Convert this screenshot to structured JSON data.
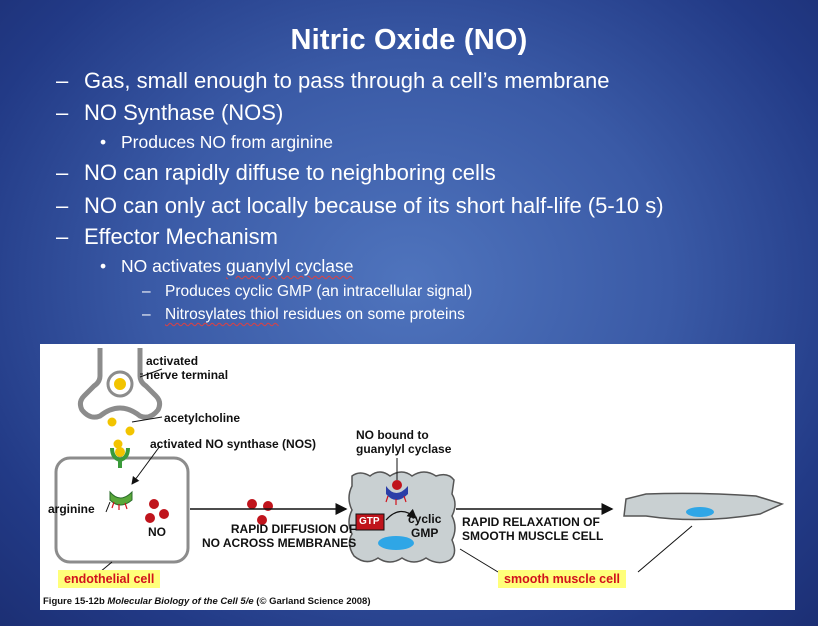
{
  "slide": {
    "title": "Nitric Oxide (NO)",
    "bullets": [
      {
        "marker": "–",
        "text": "Gas, small enough to pass through a cell’s membrane"
      },
      {
        "marker": "–",
        "text": "NO Synthase (NOS)"
      },
      {
        "marker": "•",
        "text": "Produces NO from arginine"
      },
      {
        "marker": "–",
        "text": "NO can rapidly diffuse to neighboring cells"
      },
      {
        "marker": "–",
        "text": "NO can only act locally because of its short half-life (5-10 s)"
      },
      {
        "marker": "–",
        "text": "Effector Mechanism"
      },
      {
        "marker": "•",
        "text_before": "NO activates ",
        "text_underlined": "guanylyl cyclase"
      },
      {
        "marker": "–",
        "text": "Produces cyclic GMP (an intracellular signal)"
      },
      {
        "marker": "–",
        "text_underlined": "Nitrosylates thiol",
        "text_after": " residues on some proteins"
      }
    ]
  },
  "figure": {
    "labels": {
      "activated_nerve_terminal": "activated\nnerve terminal",
      "acetylcholine": "acetylcholine",
      "activated_nos": "activated NO synthase (NOS)",
      "arginine": "arginine",
      "no": "NO",
      "no_bound": "NO bound to\nguanylyl cyclase",
      "rapid_diffusion": "RAPID DIFFUSION OF\nNO ACROSS MEMBRANES",
      "gtp": "GTP",
      "cyclic_gmp": "cyclic\nGMP",
      "rapid_relaxation": "RAPID RELAXATION OF\nSMOOTH MUSCLE CELL",
      "endothelial_cell": "endothelial cell",
      "smooth_muscle_cell": "smooth muscle cell"
    },
    "caption_bold": "Figure 15-12b",
    "caption_italic": " Molecular Biology of the Cell 5/e",
    "caption_rest": " (© Garland Science 2008)"
  },
  "colors": {
    "background": "#3a5aa6",
    "label_highlight": "#ffff7a",
    "label_text_red": "#d1121c",
    "no_molecule": "#c0141c",
    "cell_fill": "#c9d0d2",
    "nucleus": "#2fa6e6",
    "acetylcholine": "#f2c400"
  }
}
